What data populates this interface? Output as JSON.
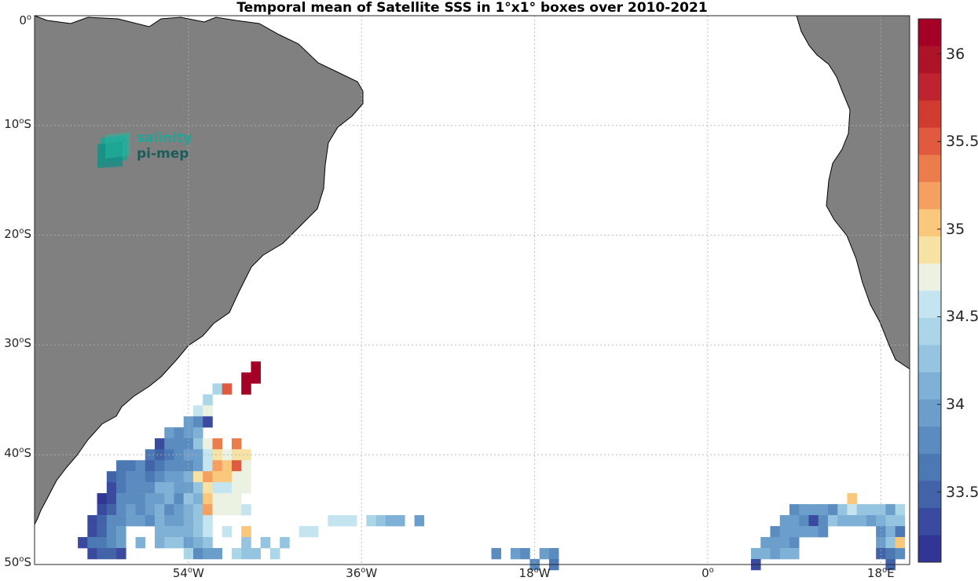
{
  "title": "Temporal mean of Satellite SSS in 1°x1° boxes over 2010-2021",
  "logo": {
    "line1": "salinity",
    "line2": "pi-mep"
  },
  "map": {
    "lon_range": [
      -70,
      21
    ],
    "lat_range": [
      -50,
      0
    ],
    "land_color": "#808080",
    "grid": true,
    "y_ticks": [
      {
        "value": 0,
        "num": "0",
        "sup": "o",
        "suffix": ""
      },
      {
        "value": -10,
        "num": "10",
        "sup": "o",
        "suffix": "S"
      },
      {
        "value": -20,
        "num": "20",
        "sup": "o",
        "suffix": "S"
      },
      {
        "value": -30,
        "num": "30",
        "sup": "o",
        "suffix": "S"
      },
      {
        "value": -40,
        "num": "40",
        "sup": "o",
        "suffix": "S"
      },
      {
        "value": -50,
        "num": "50",
        "sup": "o",
        "suffix": "S"
      }
    ],
    "x_ticks": [
      {
        "value": -54,
        "num": "54",
        "sup": "o",
        "suffix": "W"
      },
      {
        "value": -36,
        "num": "36",
        "sup": "o",
        "suffix": "W"
      },
      {
        "value": -18,
        "num": "18",
        "sup": "o",
        "suffix": "W"
      },
      {
        "value": 0,
        "num": "0",
        "sup": "o",
        "suffix": ""
      },
      {
        "value": 18,
        "num": "18",
        "sup": "o",
        "suffix": "E"
      }
    ]
  },
  "colorbar": {
    "min": 33.1,
    "max": 36.2,
    "colors": [
      "#313695",
      "#3a4a9e",
      "#4363a9",
      "#4c78b4",
      "#5b8cc0",
      "#6b9ecb",
      "#7fb1d6",
      "#94c4df",
      "#abd6e8",
      "#c4e5ef",
      "#ebf2e2",
      "#f6e2a4",
      "#f9c87c",
      "#f4a061",
      "#eb7c4c",
      "#df5a3f",
      "#d03d30",
      "#bd2430",
      "#ad1428",
      "#a50026"
    ],
    "ticks": [
      {
        "value": 33.5,
        "label": "33.5"
      },
      {
        "value": 34,
        "label": "34"
      },
      {
        "value": 34.5,
        "label": "34.5"
      },
      {
        "value": 35,
        "label": "35"
      },
      {
        "value": 35.5,
        "label": "35.5"
      },
      {
        "value": 36,
        "label": "36"
      }
    ]
  },
  "chart_data": {
    "type": "heatmap",
    "title": "Temporal mean of Satellite SSS in 1°x1° boxes over 2010-2021",
    "variable": "Satellite SSS",
    "value_range": [
      33.1,
      36.2
    ],
    "cell_size_deg": 1,
    "rows": [
      {
        "lat": -32,
        "cells": [
          [
            -47,
            36.15
          ]
        ]
      },
      {
        "lat": -33,
        "cells": [
          [
            -48,
            36.15
          ],
          [
            -47,
            36.15
          ]
        ]
      },
      {
        "lat": -34,
        "cells": [
          [
            -51,
            34.45
          ],
          [
            -50,
            35.5
          ],
          [
            -48,
            36.15
          ]
        ]
      },
      {
        "lat": -35,
        "cells": [
          [
            -52,
            34.35
          ]
        ]
      },
      {
        "lat": -36,
        "cells": [
          [
            -53,
            34.6
          ],
          [
            -52,
            34.75
          ]
        ]
      },
      {
        "lat": -37,
        "cells": [
          [
            -54,
            33.95
          ],
          [
            -53,
            33.85
          ],
          [
            -52,
            33.4
          ]
        ]
      },
      {
        "lat": -38,
        "cells": [
          [
            -56,
            33.9
          ],
          [
            -55,
            33.85
          ],
          [
            -54,
            33.95
          ],
          [
            -53,
            34.05
          ]
        ]
      },
      {
        "lat": -39,
        "cells": [
          [
            -57,
            33.4
          ],
          [
            -56,
            33.75
          ],
          [
            -55,
            33.8
          ],
          [
            -54,
            33.75
          ],
          [
            -53,
            34.2
          ],
          [
            -52,
            34.7
          ],
          [
            -51,
            35.3
          ],
          [
            -49,
            35.3
          ]
        ]
      },
      {
        "lat": -40,
        "cells": [
          [
            -58,
            33.7
          ],
          [
            -57,
            33.55
          ],
          [
            -56,
            33.65
          ],
          [
            -55,
            33.85
          ],
          [
            -54,
            33.9
          ],
          [
            -53,
            34.0
          ],
          [
            -52,
            34.65
          ],
          [
            -51,
            34.9
          ],
          [
            -50,
            34.8
          ],
          [
            -49,
            34.85
          ],
          [
            -48,
            34.85
          ]
        ]
      },
      {
        "lat": -41,
        "cells": [
          [
            -61,
            33.65
          ],
          [
            -60,
            33.7
          ],
          [
            -59,
            33.75
          ],
          [
            -58,
            33.55
          ],
          [
            -57,
            33.65
          ],
          [
            -56,
            33.75
          ],
          [
            -55,
            33.85
          ],
          [
            -54,
            33.8
          ],
          [
            -53,
            33.9
          ],
          [
            -52,
            34.5
          ],
          [
            -51,
            35.2
          ],
          [
            -50,
            35.1
          ],
          [
            -49,
            35.5
          ],
          [
            -48,
            34.75
          ]
        ]
      },
      {
        "lat": -42,
        "cells": [
          [
            -62,
            33.5
          ],
          [
            -61,
            33.7
          ],
          [
            -60,
            33.8
          ],
          [
            -59,
            33.75
          ],
          [
            -58,
            33.65
          ],
          [
            -57,
            33.85
          ],
          [
            -56,
            33.9
          ],
          [
            -55,
            34.0
          ],
          [
            -54,
            34.05
          ],
          [
            -53,
            34.95
          ],
          [
            -52,
            35.2
          ],
          [
            -51,
            35.1
          ],
          [
            -50,
            35.05
          ],
          [
            -49,
            34.75
          ],
          [
            -48,
            34.7
          ]
        ]
      },
      {
        "lat": -43,
        "cells": [
          [
            -62,
            33.35
          ],
          [
            -61,
            33.7
          ],
          [
            -60,
            33.8
          ],
          [
            -59,
            33.85
          ],
          [
            -58,
            33.75
          ],
          [
            -57,
            34.05
          ],
          [
            -56,
            34.1
          ],
          [
            -55,
            33.95
          ],
          [
            -54,
            33.9
          ],
          [
            -53,
            34.2
          ],
          [
            -52,
            34.85
          ],
          [
            -51,
            34.55
          ],
          [
            -50,
            34.55
          ],
          [
            -49,
            34.75
          ],
          [
            -48,
            34.7
          ]
        ]
      },
      {
        "lat": -44,
        "cells": [
          [
            -63,
            33.25
          ],
          [
            -62,
            33.4
          ],
          [
            -61,
            33.75
          ],
          [
            -60,
            33.85
          ],
          [
            -59,
            33.8
          ],
          [
            -58,
            33.9
          ],
          [
            -57,
            34.0
          ],
          [
            -56,
            34.05
          ],
          [
            -55,
            33.85
          ],
          [
            -54,
            34.2
          ],
          [
            -53,
            34.15
          ],
          [
            -52,
            35.05
          ],
          [
            -51,
            34.7
          ],
          [
            -50,
            34.7
          ],
          [
            -49,
            34.75
          ],
          [
            15,
            35.05
          ]
        ]
      },
      {
        "lat": -45,
        "cells": [
          [
            -63,
            33.3
          ],
          [
            -62,
            33.5
          ],
          [
            -61,
            33.85
          ],
          [
            -60,
            33.9
          ],
          [
            -59,
            33.8
          ],
          [
            -58,
            33.9
          ],
          [
            -57,
            34.05
          ],
          [
            -56,
            33.85
          ],
          [
            -55,
            33.9
          ],
          [
            -54,
            34.15
          ],
          [
            -53,
            34.25
          ],
          [
            -52,
            35.2
          ],
          [
            -51,
            34.7
          ],
          [
            -50,
            34.8
          ],
          [
            -49,
            34.7
          ],
          [
            -48,
            34.55
          ],
          [
            9,
            33.85
          ],
          [
            10,
            33.9
          ],
          [
            11,
            33.95
          ],
          [
            12,
            34.0
          ],
          [
            13,
            33.85
          ],
          [
            14,
            34.3
          ],
          [
            15,
            34.6
          ],
          [
            16,
            34.25
          ],
          [
            17,
            34.3
          ],
          [
            18,
            34.25
          ],
          [
            19,
            34.0
          ],
          [
            20,
            34.45
          ]
        ]
      },
      {
        "lat": -46,
        "cells": [
          [
            -64,
            33.4
          ],
          [
            -63,
            33.5
          ],
          [
            -62,
            33.75
          ],
          [
            -61,
            33.85
          ],
          [
            -60,
            34.0
          ],
          [
            -59,
            34.0
          ],
          [
            -58,
            33.85
          ],
          [
            -57,
            34.1
          ],
          [
            -56,
            33.95
          ],
          [
            -55,
            34.0
          ],
          [
            -54,
            34.05
          ],
          [
            -53,
            34.25
          ],
          [
            -52,
            34.55
          ],
          [
            -39,
            34.5
          ],
          [
            -38,
            34.5
          ],
          [
            -37,
            34.55
          ],
          [
            -35,
            34.35
          ],
          [
            -34,
            34.25
          ],
          [
            -33,
            34.1
          ],
          [
            -32,
            34.05
          ],
          [
            -30,
            33.95
          ],
          [
            8,
            33.95
          ],
          [
            9,
            33.9
          ],
          [
            10,
            33.85
          ],
          [
            11,
            33.4
          ],
          [
            12,
            33.8
          ],
          [
            13,
            34.3
          ],
          [
            14,
            34.05
          ],
          [
            15,
            34.1
          ],
          [
            16,
            34.05
          ],
          [
            17,
            34.0
          ],
          [
            18,
            34.1
          ],
          [
            19,
            34.2
          ],
          [
            20,
            34.3
          ]
        ]
      },
      {
        "lat": -47,
        "cells": [
          [
            -64,
            33.35
          ],
          [
            -63,
            33.5
          ],
          [
            -62,
            33.75
          ],
          [
            -61,
            33.95
          ],
          [
            -57,
            34.1
          ],
          [
            -56,
            34.05
          ],
          [
            -55,
            34.15
          ],
          [
            -54,
            34.05
          ],
          [
            -53,
            34.3
          ],
          [
            -52,
            34.5
          ],
          [
            -50,
            34.6
          ],
          [
            -48,
            35.0
          ],
          [
            -42,
            34.5
          ],
          [
            -41,
            34.5
          ],
          [
            7,
            33.85
          ],
          [
            8,
            33.9
          ],
          [
            9,
            34.0
          ],
          [
            10,
            33.95
          ],
          [
            11,
            33.9
          ],
          [
            12,
            33.85
          ],
          [
            18,
            33.85
          ],
          [
            19,
            34.15
          ],
          [
            20,
            33.7
          ]
        ]
      },
      {
        "lat": -48,
        "cells": [
          [
            -65,
            33.35
          ],
          [
            -64,
            33.6
          ],
          [
            -63,
            33.7
          ],
          [
            -62,
            33.85
          ],
          [
            -61,
            34.0
          ],
          [
            -59,
            34.05
          ],
          [
            -57,
            34.1
          ],
          [
            -56,
            34.2
          ],
          [
            -55,
            34.25
          ],
          [
            -54,
            34.0
          ],
          [
            -53,
            34.05
          ],
          [
            -52,
            34.2
          ],
          [
            -48,
            34.3
          ],
          [
            -46,
            34.2
          ],
          [
            -44,
            34.3
          ],
          [
            6,
            33.9
          ],
          [
            7,
            34.0
          ],
          [
            8,
            34.0
          ],
          [
            9,
            33.8
          ],
          [
            18,
            33.9
          ],
          [
            19,
            34.3
          ],
          [
            20,
            35.0
          ]
        ]
      },
      {
        "lat": -49,
        "cells": [
          [
            -64,
            33.3
          ],
          [
            -63,
            33.5
          ],
          [
            -62,
            33.55
          ],
          [
            -61,
            33.3
          ],
          [
            -54,
            34.35
          ],
          [
            -53,
            33.8
          ],
          [
            -52,
            33.9
          ],
          [
            -51,
            34.0
          ],
          [
            -49,
            34.4
          ],
          [
            -48,
            34.3
          ],
          [
            -47,
            34.25
          ],
          [
            -45,
            34.4
          ],
          [
            -22,
            33.85
          ],
          [
            -20,
            33.9
          ],
          [
            -19,
            33.85
          ],
          [
            -17,
            33.95
          ],
          [
            -16,
            33.8
          ],
          [
            5,
            34.1
          ],
          [
            6,
            34.05
          ],
          [
            7,
            34.0
          ],
          [
            8,
            34.1
          ],
          [
            9,
            34.05
          ],
          [
            18,
            33.5
          ],
          [
            19,
            33.7
          ],
          [
            20,
            33.75
          ]
        ]
      },
      {
        "lat": -50,
        "cells": [
          [
            -18,
            33.75
          ],
          [
            -16,
            33.7
          ],
          [
            5,
            33.4
          ],
          [
            19,
            33.5
          ]
        ]
      }
    ]
  }
}
